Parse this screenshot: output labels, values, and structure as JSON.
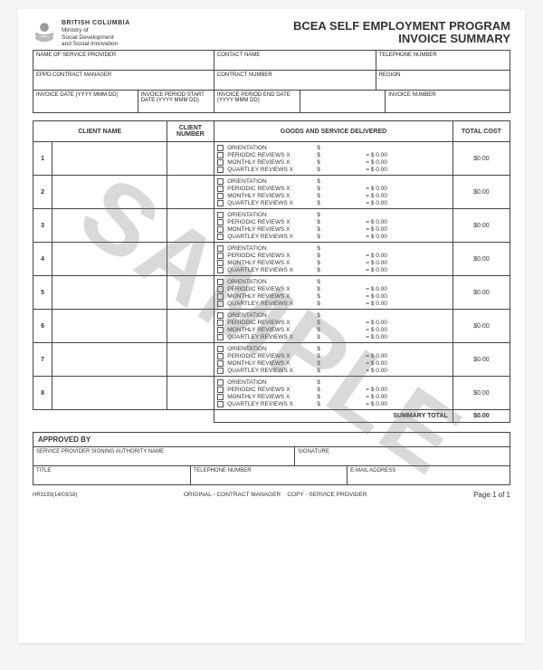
{
  "watermark": "SAMPLE",
  "header": {
    "org_short": "BRITISH COLUMBIA",
    "ministry_line1": "Ministry of",
    "ministry_line2": "Social Development",
    "ministry_line3": "and Social Innovation",
    "title_line1": "BCEA SELF EMPLOYMENT PROGRAM",
    "title_line2": "INVOICE SUMMARY"
  },
  "meta_labels": {
    "provider": "NAME OF SERVICE PROVIDER",
    "contact_name": "CONTACT NAME",
    "telephone": "TELEPHONE NUMBER",
    "eppd_mgr": "EPPD CONTRACT MANAGER",
    "contract_no": "CONTRACT NUMBER",
    "region": "REGION",
    "invoice_date": "INVOICE DATE (YYYY MMM DD)",
    "period_start": "INVOICE PERIOD START DATE (YYYY MMM DD)",
    "period_end": "INVOICE PERIOD END DATE (YYYY MMM DD)",
    "invoice_no": "INVOICE NUMBER"
  },
  "table_headers": {
    "client_name": "CLIENT NAME",
    "client_number": "CLIENT NUMBER",
    "goods": "GOODS AND SERVICE DELIVERED",
    "total_cost": "TOTAL COST",
    "summary_total": "SUMMARY TOTAL"
  },
  "service_labels": {
    "orientation": "ORIENTATION",
    "periodic": "PERIODIC REVIEWS X",
    "monthly": "MONTHLY REVIEWS X",
    "quarterly": "QUARTLEY REVIEWS X"
  },
  "amount_prefix": "$",
  "amount_eq": "= $ 0.00",
  "rows": [
    {
      "idx": "1",
      "total": "$0.00"
    },
    {
      "idx": "2",
      "total": "$0.00"
    },
    {
      "idx": "3",
      "total": "$0.00"
    },
    {
      "idx": "4",
      "total": "$0.00"
    },
    {
      "idx": "5",
      "total": "$0.00"
    },
    {
      "idx": "6",
      "total": "$0.00"
    },
    {
      "idx": "7",
      "total": "$0.00"
    },
    {
      "idx": "8",
      "total": "$0.00"
    }
  ],
  "summary_total_value": "$0.00",
  "approval": {
    "heading": "APPROVED BY",
    "signing_name": "SERVICE PROVIDER SIGNING AUTHORITY NAME",
    "signature": "SIGNATURE",
    "title": "TITLE",
    "telephone": "TELEPHONE NUMBER",
    "email": "E-MAIL ADDRESS"
  },
  "footer": {
    "code": "HR3193(14/03/18)",
    "distribution": "ORIGINAL - CONTRACT MANAGER    COPY - SERVICE PROVIDER",
    "page": "Page 1 of 1"
  },
  "colors": {
    "border": "#444444",
    "text": "#333333",
    "watermark": "rgba(120,120,120,0.28)",
    "page_bg": "#ffffff",
    "body_bg": "#f4f4f4"
  }
}
